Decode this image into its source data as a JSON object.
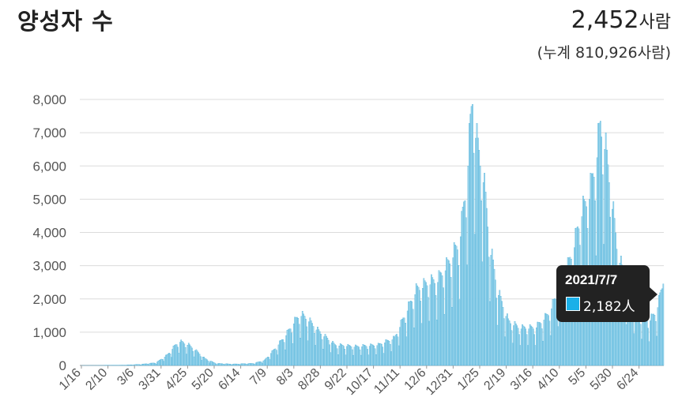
{
  "header": {
    "title": "양성자 수",
    "total_value": "2,452",
    "total_unit": "사람",
    "cumulative": "(누계 810,926사람)"
  },
  "tooltip": {
    "date": "2021/7/7",
    "value": "2,182人",
    "swatch_color": "#1ab0e8"
  },
  "chart_data": {
    "type": "bar",
    "title": "양성자 수",
    "xlabel": "",
    "ylabel": "",
    "ylim": [
      0,
      8000
    ],
    "yticks": [
      "0",
      "1,000",
      "2,000",
      "3,000",
      "4,000",
      "5,000",
      "6,000",
      "7,000",
      "8,000"
    ],
    "grid": true,
    "bar_color": "#9fd6ec",
    "bar_edge_color": "#3aa9d6",
    "x_tick_labels": [
      "1/16",
      "2/10",
      "3/6",
      "3/31",
      "4/25",
      "5/20",
      "6/14",
      "7/9",
      "8/3",
      "8/28",
      "9/22",
      "10/17",
      "11/11",
      "12/6",
      "12/31",
      "1/25",
      "2/19",
      "3/16",
      "4/10",
      "5/5",
      "5/30",
      "6/24"
    ],
    "x_tick_offsets": [
      0,
      25,
      50,
      75,
      100,
      125,
      150,
      175,
      200,
      225,
      250,
      275,
      300,
      325,
      350,
      375,
      400,
      425,
      450,
      475,
      500,
      525
    ],
    "num_days": 539,
    "daily_profile": [
      [
        0,
        0
      ],
      [
        20,
        2
      ],
      [
        40,
        10
      ],
      [
        55,
        30
      ],
      [
        70,
        80
      ],
      [
        80,
        300
      ],
      [
        88,
        600
      ],
      [
        92,
        700
      ],
      [
        100,
        600
      ],
      [
        108,
        400
      ],
      [
        115,
        200
      ],
      [
        125,
        60
      ],
      [
        140,
        40
      ],
      [
        160,
        60
      ],
      [
        170,
        150
      ],
      [
        180,
        500
      ],
      [
        190,
        900
      ],
      [
        198,
        1300
      ],
      [
        203,
        1500
      ],
      [
        210,
        1350
      ],
      [
        220,
        1000
      ],
      [
        235,
        600
      ],
      [
        255,
        550
      ],
      [
        275,
        600
      ],
      [
        290,
        800
      ],
      [
        300,
        1500
      ],
      [
        310,
        2200
      ],
      [
        320,
        2400
      ],
      [
        330,
        2500
      ],
      [
        340,
        3000
      ],
      [
        350,
        3600
      ],
      [
        357,
        5500
      ],
      [
        360,
        7000
      ],
      [
        362,
        7850
      ],
      [
        366,
        6500
      ],
      [
        372,
        5500
      ],
      [
        378,
        3500
      ],
      [
        385,
        2200
      ],
      [
        395,
        1300
      ],
      [
        405,
        1100
      ],
      [
        420,
        1100
      ],
      [
        432,
        1500
      ],
      [
        445,
        2400
      ],
      [
        455,
        3400
      ],
      [
        462,
        4400
      ],
      [
        470,
        5000
      ],
      [
        476,
        6000
      ],
      [
        480,
        7000
      ],
      [
        484,
        6500
      ],
      [
        490,
        5000
      ],
      [
        495,
        3500
      ],
      [
        505,
        2100
      ],
      [
        515,
        1500
      ],
      [
        525,
        1300
      ],
      [
        532,
        1600
      ],
      [
        538,
        2450
      ]
    ],
    "highlighted": {
      "date": "2021/7/7",
      "value": 2182
    }
  }
}
